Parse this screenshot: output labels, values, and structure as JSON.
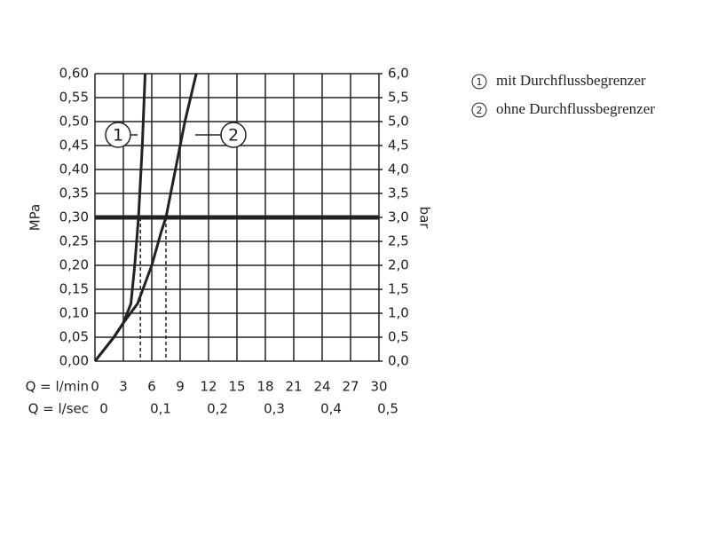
{
  "chart_data": {
    "type": "line",
    "y_label": "MPa",
    "y2_label": "bar",
    "x_row_label": "Q = l/min",
    "x2_row_label": "Q = l/sec",
    "xlim": [
      0,
      30
    ],
    "xticks": [
      0,
      3,
      6,
      9,
      12,
      15,
      18,
      21,
      24,
      27,
      30
    ],
    "x2lim": [
      0,
      0.5
    ],
    "x2ticks": [
      0,
      {
        "value": 0.1,
        "label": "0,1"
      },
      {
        "value": 0.2,
        "label": "0,2"
      },
      {
        "value": 0.3,
        "label": "0,3"
      },
      {
        "value": 0.4,
        "label": "0,4"
      },
      {
        "value": 0.5,
        "label": "0,5"
      }
    ],
    "ylim": [
      0,
      0.6
    ],
    "yticks": [
      {
        "value": 0,
        "label": "0,00"
      },
      {
        "value": 0.05,
        "label": "0,05"
      },
      {
        "value": 0.1,
        "label": "0,10"
      },
      {
        "value": 0.15,
        "label": "0,15"
      },
      {
        "value": 0.2,
        "label": "0,20"
      },
      {
        "value": 0.25,
        "label": "0,25"
      },
      {
        "value": 0.3,
        "label": "0,30"
      },
      {
        "value": 0.35,
        "label": "0,35"
      },
      {
        "value": 0.4,
        "label": "0,40"
      },
      {
        "value": 0.45,
        "label": "0,45"
      },
      {
        "value": 0.5,
        "label": "0,50"
      },
      {
        "value": 0.55,
        "label": "0,55"
      },
      {
        "value": 0.6,
        "label": "0,60"
      }
    ],
    "y2lim": [
      0,
      6
    ],
    "y2ticks": [
      {
        "value": 0,
        "label": "0,0"
      },
      {
        "value": 0.5,
        "label": "0,5"
      },
      {
        "value": 1,
        "label": "1,0"
      },
      {
        "value": 1.5,
        "label": "1,5"
      },
      {
        "value": 2,
        "label": "2,0"
      },
      {
        "value": 2.5,
        "label": "2,5"
      },
      {
        "value": 3,
        "label": "3,0"
      },
      {
        "value": 3.5,
        "label": "3,5"
      },
      {
        "value": 4,
        "label": "4,0"
      },
      {
        "value": 4.5,
        "label": "4,5"
      },
      {
        "value": 5,
        "label": "5,0"
      },
      {
        "value": 5.5,
        "label": "5,5"
      },
      {
        "value": 6,
        "label": "6,0"
      }
    ],
    "grid": true,
    "reference_line": 0.3,
    "series": [
      {
        "name": "mit Durchflussbegrenzer",
        "label": "1",
        "color": "#222222",
        "x": [
          0,
          2,
          3,
          3.8,
          4.2,
          4.6,
          5,
          5.3
        ],
        "values": [
          0,
          0.05,
          0.08,
          0.12,
          0.2,
          0.3,
          0.45,
          0.6
        ],
        "drop_x": 4.8
      },
      {
        "name": "ohne Durchflussbegrenzer",
        "label": "2",
        "color": "#222222",
        "x": [
          0,
          2,
          3,
          4.5,
          6,
          7,
          7.5,
          8.5,
          9.5,
          10.7
        ],
        "values": [
          0,
          0.05,
          0.08,
          0.12,
          0.2,
          0.27,
          0.3,
          0.4,
          0.5,
          0.6
        ],
        "drop_x": 7.5
      }
    ]
  }
}
